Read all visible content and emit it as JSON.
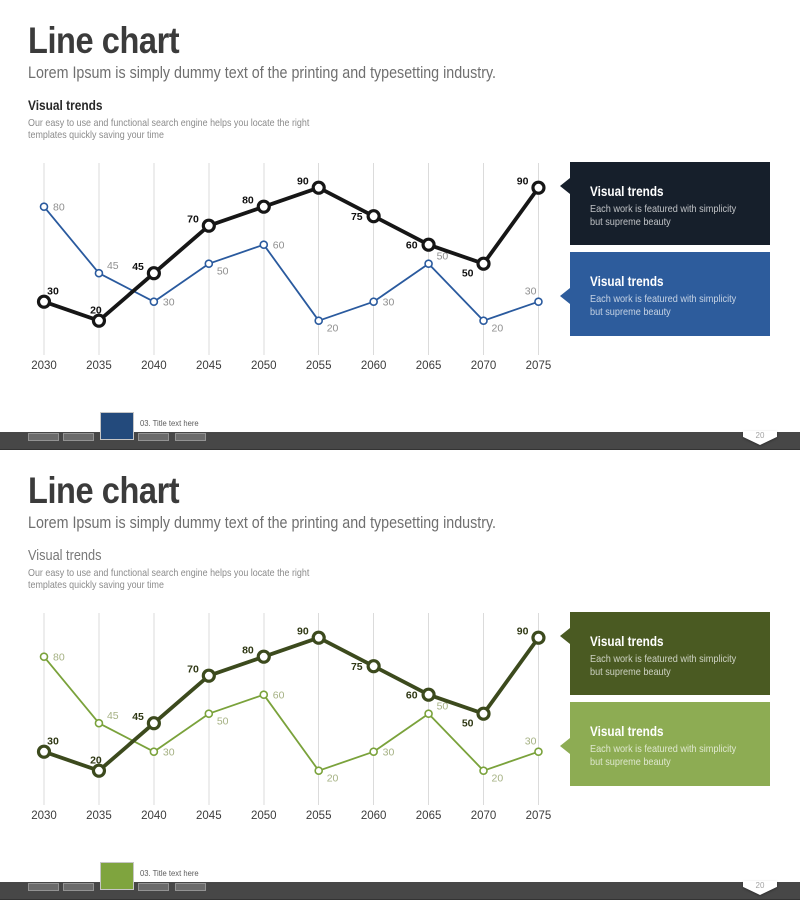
{
  "slides": [
    {
      "title": "Line chart",
      "subtitle": "Lorem Ipsum is simply dummy text of the printing and typesetting industry.",
      "section": {
        "heading": "Visual trends",
        "description_line1": "Our easy to use and functional search engine helps you locate the right",
        "description_line2": "templates quickly saving your time"
      },
      "callouts": [
        {
          "title": "Visual trends",
          "line1": "Each work is featured with simplicity",
          "line2": "but supreme beauty"
        },
        {
          "title": "Visual trends",
          "line1": "Each work is featured with simplicity",
          "line2": "but supreme beauty"
        }
      ],
      "theme": {
        "primary_box": "#161f2b",
        "secondary_box": "#2d5c9c",
        "active_tab": "#234a7c"
      },
      "footer": {
        "label": "03. Title text here",
        "page_number": "20",
        "tab_count": 5,
        "active_tab_index": 3
      }
    },
    {
      "title": "Line chart",
      "subtitle": "Lorem Ipsum is simply dummy text of the printing and typesetting industry.",
      "section": {
        "heading": "Visual trends",
        "description_line1": "Our easy to use and functional search engine helps you locate the right",
        "description_line2": "templates quickly saving your time"
      },
      "callouts": [
        {
          "title": "Visual trends",
          "line1": "Each work is featured with simplicity",
          "line2": "but supreme beauty"
        },
        {
          "title": "Visual trends",
          "line1": "Each work is featured with simplicity",
          "line2": "but supreme beauty"
        }
      ],
      "theme": {
        "primary_box": "#4a5a22",
        "secondary_box": "#8dac53",
        "active_tab": "#7fa43e"
      },
      "footer": {
        "label": "03. Title text here",
        "page_number": "20",
        "tab_count": 5,
        "active_tab_index": 3
      }
    }
  ],
  "chart_data": [
    {
      "type": "line",
      "title": "",
      "categories": [
        "2030",
        "2035",
        "2040",
        "2045",
        "2050",
        "2055",
        "2060",
        "2065",
        "2070",
        "2075"
      ],
      "series": [
        {
          "name": "Visual trends (dark)",
          "values": [
            30,
            20,
            45,
            70,
            80,
            90,
            75,
            60,
            50,
            90
          ],
          "color": "#161616",
          "label_color": "#101010",
          "label_placement": [
            "above-right",
            "above",
            "left-above",
            "left-above",
            "left-above",
            "left-above",
            "left",
            "left",
            "left-below",
            "left-above"
          ]
        },
        {
          "name": "Visual trends (blue)",
          "values": [
            80,
            45,
            30,
            50,
            60,
            20,
            30,
            50,
            20,
            30
          ],
          "color": "#2a5a9e",
          "label_color": "#8f8f8f",
          "label_placement": [
            "right",
            "right-above",
            "right",
            "right-below",
            "right",
            "right-below",
            "right",
            "right-above",
            "right-below",
            "above-left"
          ]
        }
      ],
      "ylim": [
        0,
        100
      ],
      "xlabel": "",
      "ylabel": "",
      "grid": "vertical-only",
      "legend_position": "right",
      "tick_color": "#3c3c3c"
    },
    {
      "type": "line",
      "title": "",
      "categories": [
        "2030",
        "2035",
        "2040",
        "2045",
        "2050",
        "2055",
        "2060",
        "2065",
        "2070",
        "2075"
      ],
      "series": [
        {
          "name": "Visual trends (dark green)",
          "values": [
            30,
            20,
            45,
            70,
            80,
            90,
            75,
            60,
            50,
            90
          ],
          "color": "#3c4a1d",
          "label_color": "#2f3814",
          "label_placement": [
            "above-right",
            "above",
            "left-above",
            "left-above",
            "left-above",
            "left-above",
            "left",
            "left",
            "left-below",
            "left-above"
          ]
        },
        {
          "name": "Visual trends (light green)",
          "values": [
            80,
            45,
            30,
            50,
            60,
            20,
            30,
            50,
            20,
            30
          ],
          "color": "#7aa23b",
          "label_color": "#a5b183",
          "label_placement": [
            "right",
            "right-above",
            "right",
            "right-below",
            "right",
            "right-below",
            "right",
            "right-above",
            "right-below",
            "above-left"
          ]
        }
      ],
      "ylim": [
        0,
        100
      ],
      "xlabel": "",
      "ylabel": "",
      "grid": "vertical-only",
      "legend_position": "right",
      "tick_color": "#3c3c3c"
    }
  ]
}
